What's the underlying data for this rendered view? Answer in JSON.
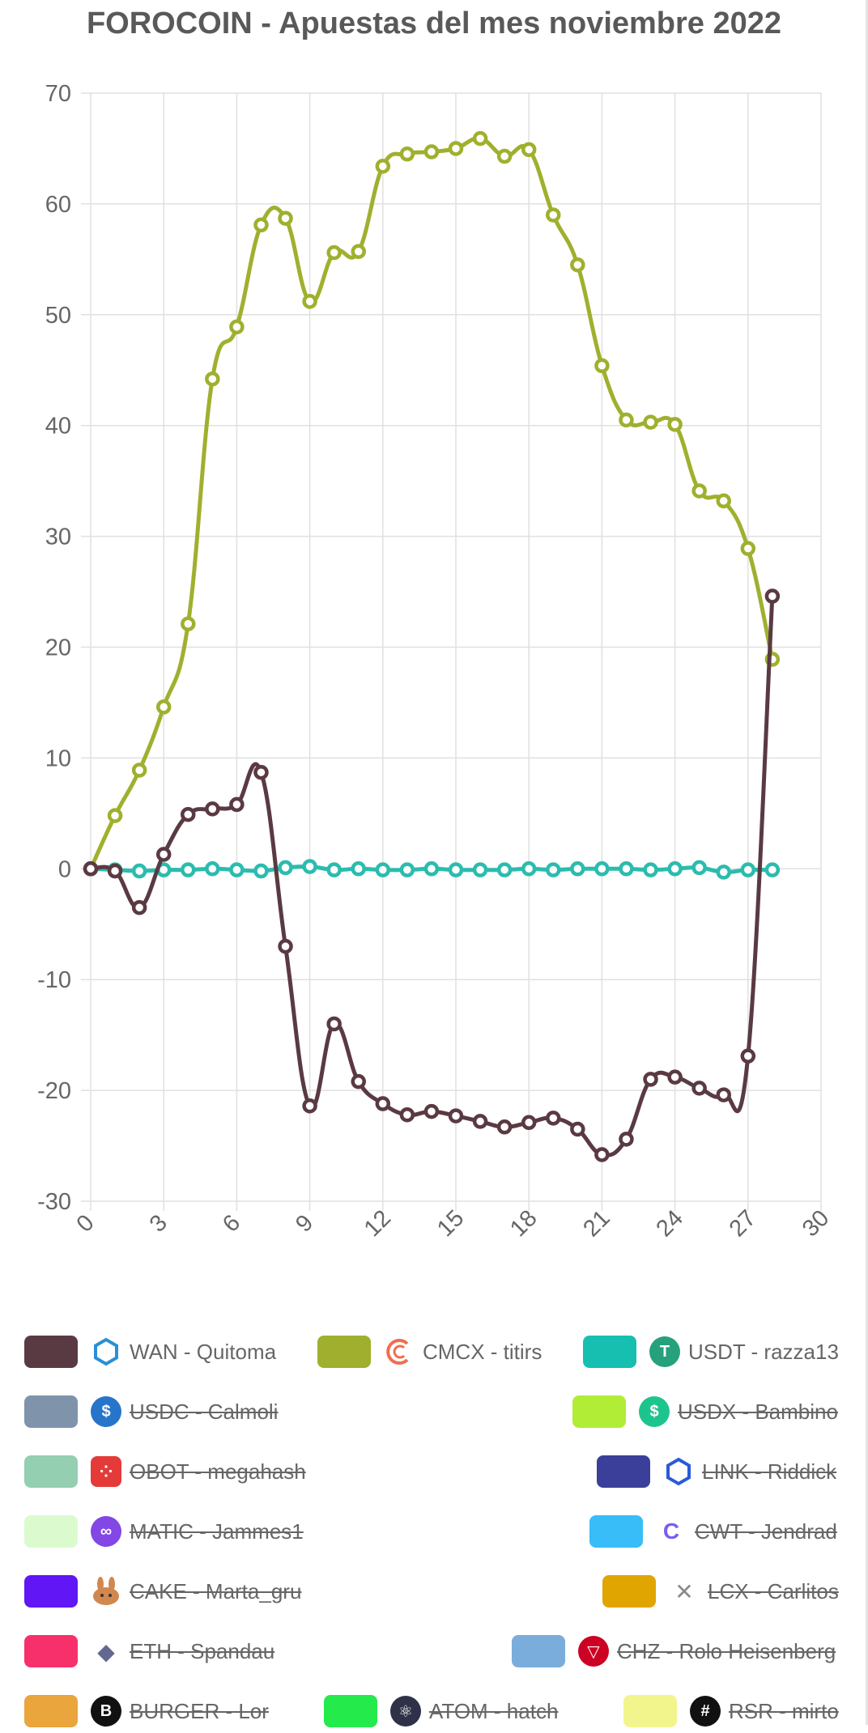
{
  "chart_data": {
    "type": "line",
    "title": "FOROCOIN - Apuestas del mes noviembre 2022",
    "xlim": [
      0,
      30
    ],
    "ylim": [
      -30,
      70
    ],
    "x_ticks": [
      0,
      3,
      6,
      9,
      12,
      15,
      18,
      21,
      24,
      27,
      30
    ],
    "y_ticks": [
      70,
      60,
      50,
      40,
      30,
      20,
      10,
      0,
      -10,
      -20,
      -30
    ],
    "grid": true,
    "legend_position": "bottom",
    "series": [
      {
        "name": "WAN - Quitoma",
        "color": "#5a3a42",
        "x": [
          0,
          1,
          2,
          3,
          4,
          5,
          6,
          7,
          8,
          9,
          10,
          11,
          12,
          13,
          14,
          15,
          16,
          17,
          18,
          19,
          20,
          21,
          22,
          23,
          24,
          25,
          26,
          27,
          28
        ],
        "values": [
          0,
          -0.2,
          -3.5,
          1.3,
          4.9,
          5.4,
          5.8,
          8.7,
          -7,
          -21.4,
          -14,
          -19.2,
          -21.2,
          -22.2,
          -21.9,
          -22.3,
          -22.8,
          -23.3,
          -22.9,
          -22.5,
          -23.5,
          -25.8,
          -24.4,
          -19,
          -18.8,
          -19.8,
          -20.4,
          -16.9,
          24.6
        ],
        "hidden": false
      },
      {
        "name": "CMCX - titirs",
        "color": "#a0b02e",
        "x": [
          0,
          1,
          2,
          3,
          4,
          5,
          6,
          7,
          8,
          9,
          10,
          11,
          12,
          13,
          14,
          15,
          16,
          17,
          18,
          19,
          20,
          21,
          22,
          23,
          24,
          25,
          26,
          27,
          28
        ],
        "values": [
          0,
          4.8,
          8.9,
          14.6,
          22.1,
          44.2,
          48.9,
          58.1,
          58.7,
          51.2,
          55.6,
          55.7,
          63.4,
          64.5,
          64.7,
          65,
          65.9,
          64.3,
          64.9,
          59,
          54.5,
          45.4,
          40.5,
          40.3,
          40.1,
          34.1,
          33.2,
          28.9,
          18.9
        ],
        "hidden": false
      },
      {
        "name": "USDT - razza13",
        "color": "#2bbcae",
        "x": [
          0,
          1,
          2,
          3,
          4,
          5,
          6,
          7,
          8,
          9,
          10,
          11,
          12,
          13,
          14,
          15,
          16,
          17,
          18,
          19,
          20,
          21,
          22,
          23,
          24,
          25,
          26,
          27,
          28
        ],
        "values": [
          0,
          -0.1,
          -0.2,
          -0.1,
          -0.1,
          0,
          -0.1,
          -0.2,
          0.1,
          0.2,
          -0.1,
          0,
          -0.1,
          -0.1,
          0,
          -0.1,
          -0.1,
          -0.1,
          0,
          -0.1,
          0,
          0,
          0,
          -0.1,
          0,
          0.1,
          -0.3,
          -0.1,
          -0.1
        ],
        "hidden": false
      }
    ]
  },
  "legend": [
    {
      "label": "WAN - Quitoma",
      "color": "#5a3a42",
      "icon": "wanchain-icon",
      "icon_color": "#2a8fd6",
      "icon_glyph": "",
      "hidden": false
    },
    {
      "label": "CMCX - titirs",
      "color": "#a0b02e",
      "icon": "cmcx-icon",
      "icon_color": "#ef6e4e",
      "icon_glyph": "",
      "hidden": false
    },
    {
      "label": "USDT - razza13",
      "color": "#17bfb0",
      "icon": "tether-icon",
      "icon_color": "#26a17b",
      "icon_glyph": "T",
      "hidden": false
    },
    {
      "label": "USDC - Calmoli",
      "color": "#7f94ab",
      "icon": "usdc-icon",
      "icon_color": "#2775ca",
      "icon_glyph": "$",
      "hidden": true
    },
    {
      "label": "USDX - Bambino",
      "color": "#b1ec37",
      "icon": "usdx-icon",
      "icon_color": "#1ec48d",
      "icon_glyph": "$",
      "hidden": true
    },
    {
      "label": "OBOT - megahash",
      "color": "#93cfb0",
      "icon": "obot-icon",
      "icon_color": "#e53a3a",
      "icon_glyph": "::",
      "hidden": true
    },
    {
      "label": "LINK - Riddick",
      "color": "#3c3f99",
      "icon": "chainlink-icon",
      "icon_color": "#2a5ada",
      "icon_glyph": "",
      "hidden": true
    },
    {
      "label": "MATIC - Jammes1",
      "color": "#dbfbcf",
      "icon": "polygon-icon",
      "icon_color": "#8247e5",
      "icon_glyph": "∞",
      "hidden": true
    },
    {
      "label": "CWT - Jendrad",
      "color": "#38bdf8",
      "icon": "cwt-icon",
      "icon_color": "#7c5cf0",
      "icon_glyph": "C",
      "hidden": true
    },
    {
      "label": "CAKE - Marta_gru",
      "color": "#6016f5",
      "icon": "pancakeswap-icon",
      "icon_color": "#d1884f",
      "icon_glyph": "",
      "hidden": true
    },
    {
      "label": "LCX - Carlitos",
      "color": "#e0a500",
      "icon": "lcx-icon",
      "icon_color": "#8a8a8a",
      "icon_glyph": "✕",
      "hidden": true
    },
    {
      "label": "ETH - Spandau",
      "color": "#f7306b",
      "icon": "ethereum-icon",
      "icon_color": "#62688f",
      "icon_glyph": "◆",
      "hidden": true
    },
    {
      "label": "CHZ - Rolo Heisenberg",
      "color": "#7aaddb",
      "icon": "chiliz-icon",
      "icon_color": "#cd0124",
      "icon_glyph": "▽",
      "hidden": true
    },
    {
      "label": "BURGER - Lor",
      "color": "#eaa53c",
      "icon": "burger-icon",
      "icon_color": "#111111",
      "icon_glyph": "B",
      "hidden": true
    },
    {
      "label": "ATOM - hatch",
      "color": "#25ea4c",
      "icon": "cosmos-icon",
      "icon_color": "#2e3148",
      "icon_glyph": "⚛",
      "hidden": true
    },
    {
      "label": "RSR - mirto",
      "color": "#f2f58c",
      "icon": "reserve-rights-icon",
      "icon_color": "#111111",
      "icon_glyph": "#",
      "hidden": true
    }
  ]
}
